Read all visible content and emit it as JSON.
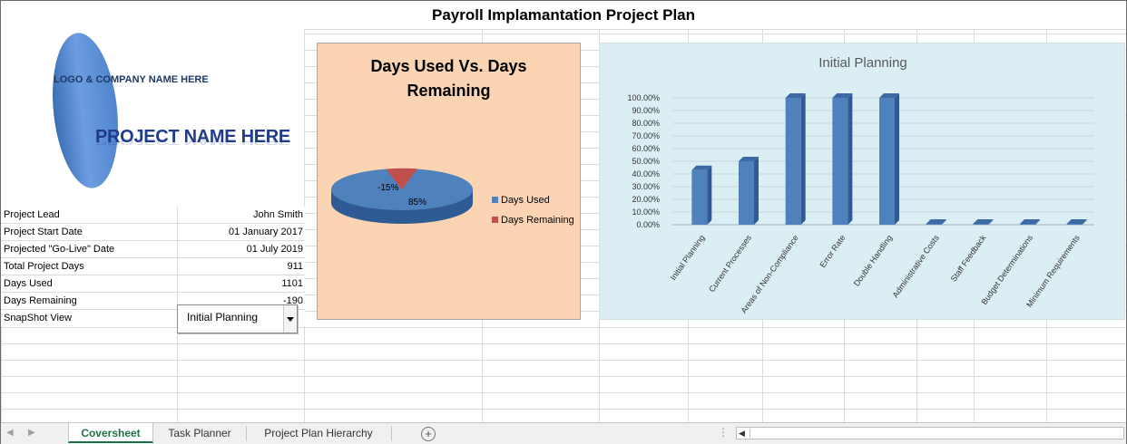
{
  "sheet_title": "Payroll Implamantation Project Plan",
  "logo": {
    "company_text": "LOGO & COMPANY NAME HERE",
    "project_text": "PROJECT NAME HERE"
  },
  "info_rows": [
    {
      "label": "Project Lead",
      "value": "John Smith"
    },
    {
      "label": "Project Start Date",
      "value": "01 January 2017"
    },
    {
      "label": "Projected \"Go-Live\" Date",
      "value": "01 July 2019"
    },
    {
      "label": "Total Project Days",
      "value": "911"
    },
    {
      "label": "Days Used",
      "value": "1101"
    },
    {
      "label": "Days Remaining",
      "value": "-190"
    }
  ],
  "snapshot": {
    "label": "SnapShot View",
    "selected": "Initial Planning"
  },
  "pie_chart": {
    "title_line1": "Days Used Vs. Days",
    "title_line2": "Remaining",
    "used_label": "85%",
    "remaining_label": "-15%",
    "legend_used": "Days Used",
    "legend_remaining": "Days Remaining",
    "color_used": "#4f81bd",
    "color_remaining": "#c0504d"
  },
  "chart_data": {
    "type": "bar",
    "title": "Initial Planning",
    "categories": [
      "Initial Planning",
      "Current Processes",
      "Areas of Non-Compliance",
      "Error Rate",
      "Double Handling",
      "Administrative Costs",
      "Staff Feedback",
      "Budget Determinations",
      "Minimum Requirements"
    ],
    "values": [
      0.43,
      0.5,
      1.0,
      1.0,
      1.0,
      0,
      0,
      0,
      0
    ],
    "ylim": [
      0,
      1
    ],
    "yticks": [
      "0.00%",
      "10.00%",
      "20.00%",
      "30.00%",
      "40.00%",
      "50.00%",
      "60.00%",
      "70.00%",
      "80.00%",
      "90.00%",
      "100.00%"
    ],
    "grid": true,
    "color": "#4f81bd"
  },
  "sheet_tabs": [
    {
      "label": "Coversheet",
      "active": true
    },
    {
      "label": "Task Planner",
      "active": false
    },
    {
      "label": "Project Plan Hierarchy",
      "active": false
    }
  ],
  "icons": {
    "add_sheet": "plus-circle-icon",
    "prev": "triangle-left-icon",
    "next": "triangle-right-icon"
  }
}
